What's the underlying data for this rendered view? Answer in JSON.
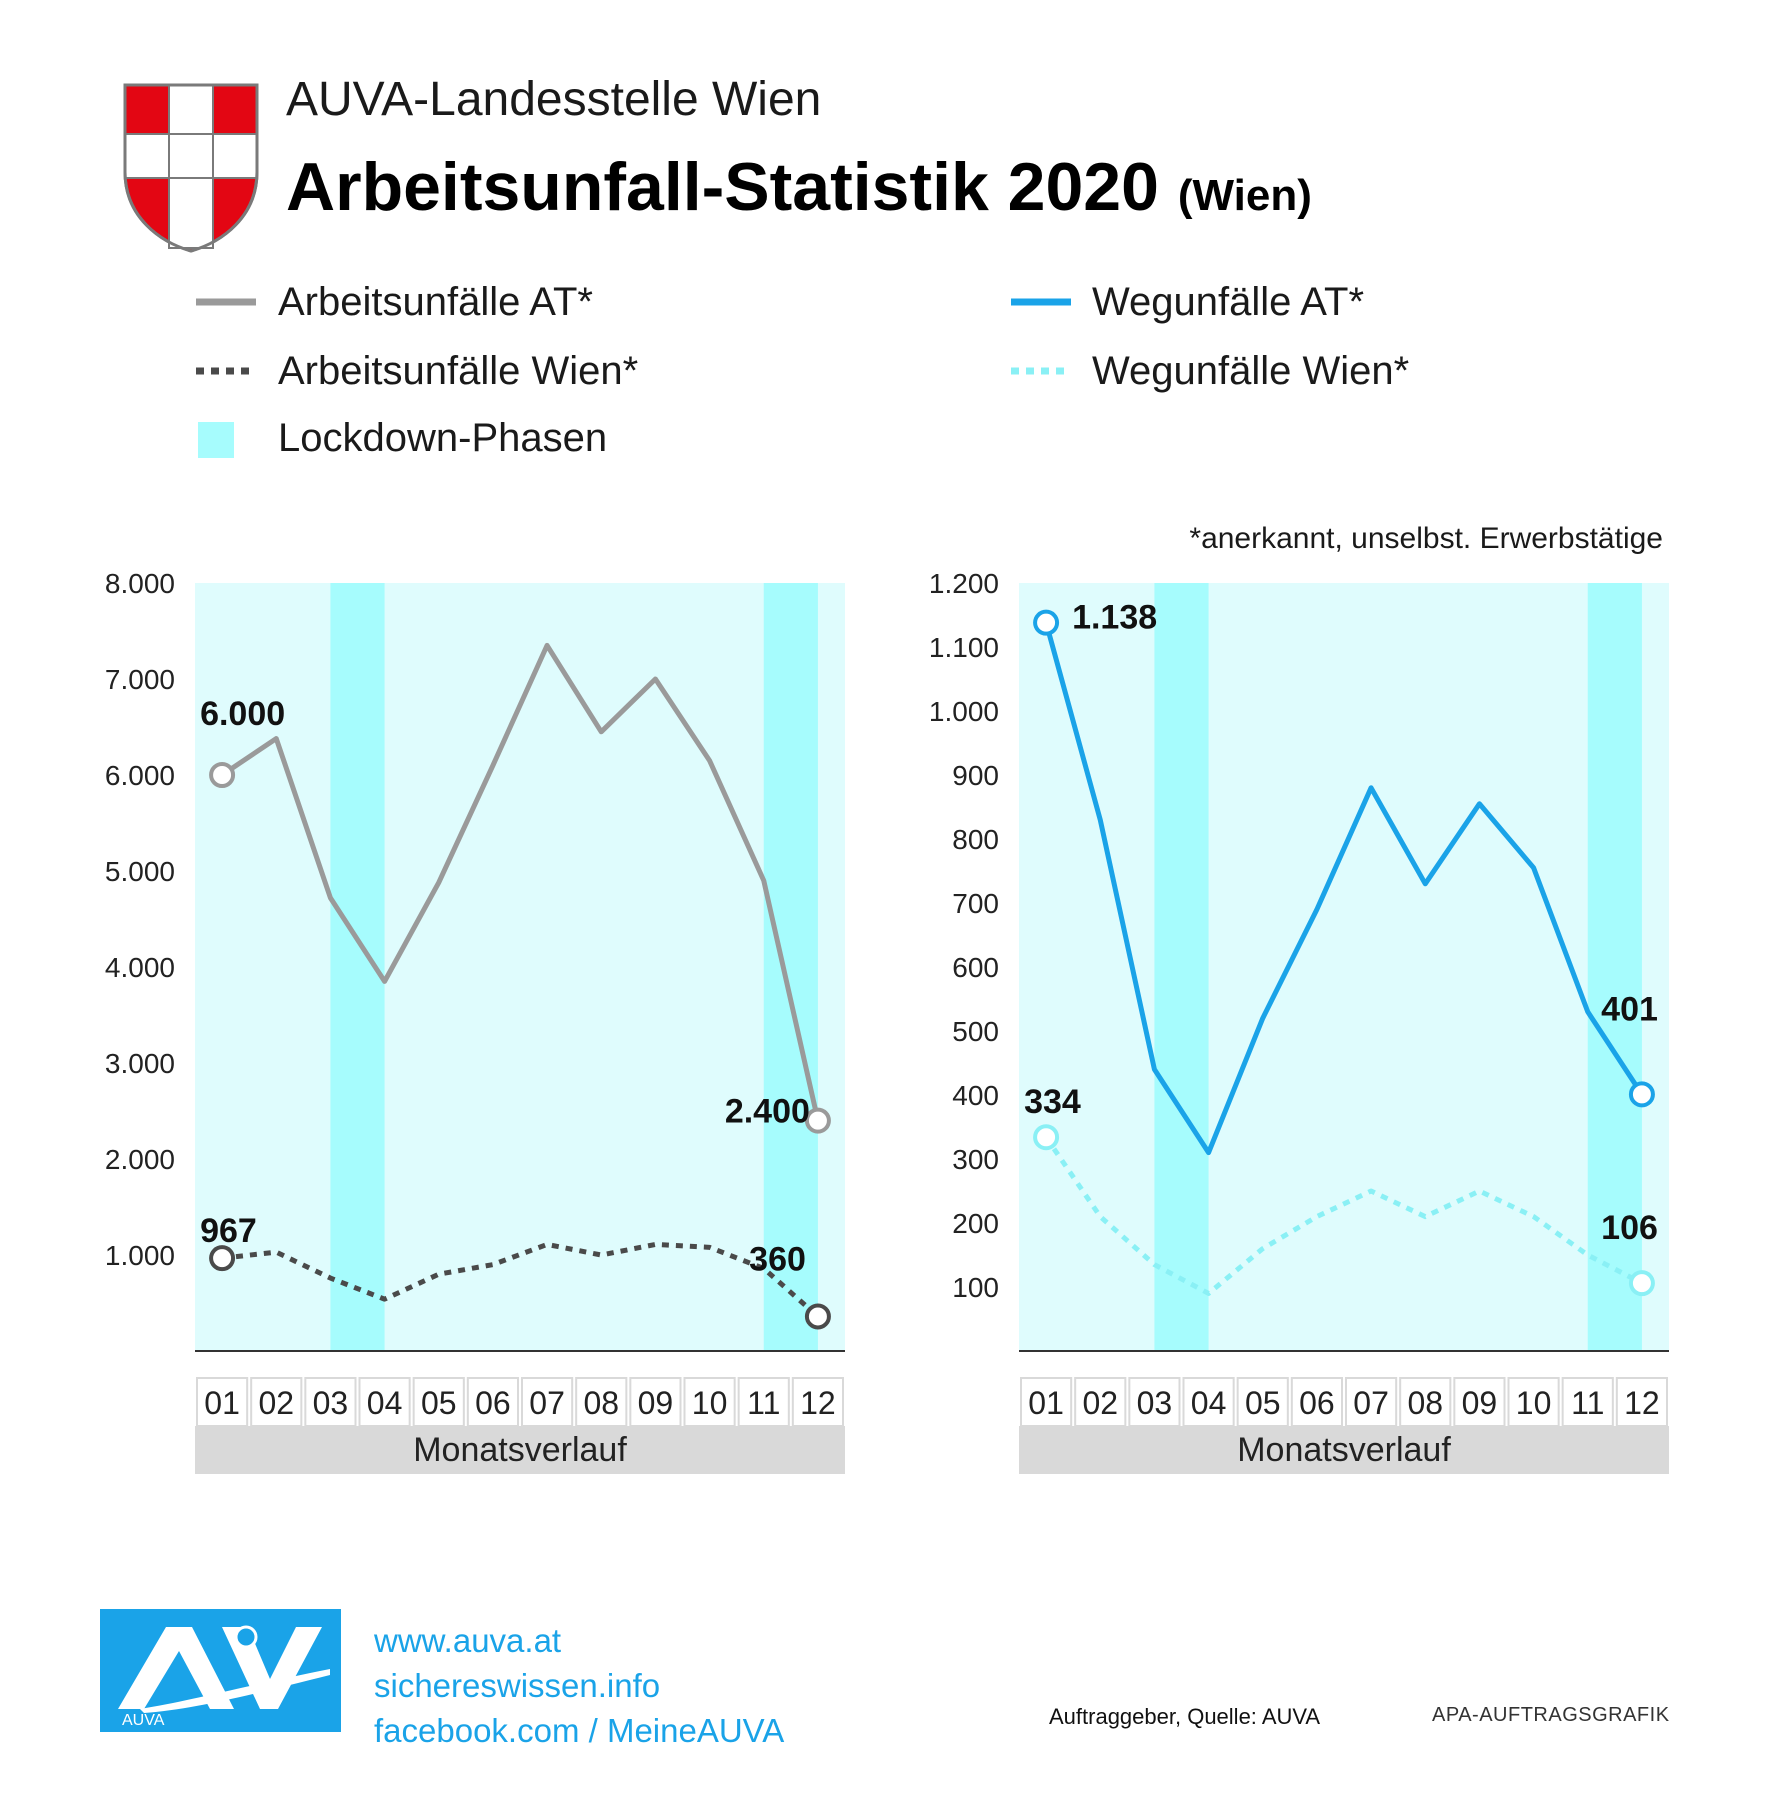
{
  "header": {
    "subtitle": "AUVA-Landesstelle Wien",
    "title": "Arbeitsunfall-Statistik 2020",
    "title_suffix": "(Wien)"
  },
  "legend": {
    "items": [
      {
        "label": "Arbeitsunfälle AT*",
        "style": "solid",
        "color": "#9a9a9a"
      },
      {
        "label": "Arbeitsunfälle Wien*",
        "style": "dotted",
        "color": "#4a4a4a"
      },
      {
        "label": "Lockdown-Phasen",
        "style": "box",
        "color": "#a6fcfd"
      },
      {
        "label": "Wegunfälle AT*",
        "style": "solid",
        "color": "#1aa3e8"
      },
      {
        "label": "Wegunfälle Wien*",
        "style": "dotted",
        "color": "#8af0f5"
      }
    ]
  },
  "note": "*anerkannt, unselbst. Erwerbstätige",
  "chart_data": [
    {
      "type": "line",
      "categories": [
        "01",
        "02",
        "03",
        "04",
        "05",
        "06",
        "07",
        "08",
        "09",
        "10",
        "11",
        "12"
      ],
      "xlabel": "Monatsverlauf",
      "ylim": [
        0,
        8000
      ],
      "yticks": [
        "8.000",
        "7.000",
        "6.000",
        "5.000",
        "4.000",
        "3.000",
        "2.000",
        "1.000"
      ],
      "ytick_values": [
        8000,
        7000,
        6000,
        5000,
        4000,
        3000,
        2000,
        1000
      ],
      "lockdown_months": [
        [
          "03",
          "04"
        ],
        [
          "11",
          "12"
        ]
      ],
      "series": [
        {
          "name": "Arbeitsunfälle AT*",
          "color": "#9a9a9a",
          "style": "solid",
          "values": [
            6000,
            6380,
            4720,
            3850,
            4880,
            6100,
            7350,
            6450,
            7000,
            6150,
            4900,
            2400
          ]
        },
        {
          "name": "Arbeitsunfälle Wien*",
          "color": "#4a4a4a",
          "style": "dotted",
          "values": [
            967,
            1030,
            760,
            540,
            800,
            900,
            1110,
            1000,
            1110,
            1080,
            860,
            360
          ]
        }
      ],
      "data_labels": [
        {
          "series": 0,
          "index": 0,
          "text": "6.000"
        },
        {
          "series": 0,
          "index": 11,
          "text": "2.400"
        },
        {
          "series": 1,
          "index": 0,
          "text": "967"
        },
        {
          "series": 1,
          "index": 11,
          "text": "360"
        }
      ]
    },
    {
      "type": "line",
      "categories": [
        "01",
        "02",
        "03",
        "04",
        "05",
        "06",
        "07",
        "08",
        "09",
        "10",
        "11",
        "12"
      ],
      "xlabel": "Monatsverlauf",
      "ylim": [
        0,
        1200
      ],
      "yticks": [
        "1.200",
        "1.100",
        "1.000",
        "900",
        "800",
        "700",
        "600",
        "500",
        "400",
        "300",
        "200",
        "100"
      ],
      "ytick_values": [
        1200,
        1100,
        1000,
        900,
        800,
        700,
        600,
        500,
        400,
        300,
        200,
        100
      ],
      "lockdown_months": [
        [
          "03",
          "04"
        ],
        [
          "11",
          "12"
        ]
      ],
      "series": [
        {
          "name": "Wegunfälle AT*",
          "color": "#1aa3e8",
          "style": "solid",
          "values": [
            1138,
            830,
            440,
            310,
            520,
            690,
            880,
            730,
            855,
            755,
            530,
            401
          ]
        },
        {
          "name": "Wegunfälle Wien*",
          "color": "#8af0f5",
          "style": "dotted",
          "values": [
            334,
            210,
            135,
            90,
            160,
            210,
            250,
            210,
            250,
            210,
            150,
            106
          ]
        }
      ],
      "data_labels": [
        {
          "series": 0,
          "index": 0,
          "text": "1.138"
        },
        {
          "series": 0,
          "index": 11,
          "text": "401"
        },
        {
          "series": 1,
          "index": 0,
          "text": "334"
        },
        {
          "series": 1,
          "index": 11,
          "text": "106"
        }
      ]
    }
  ],
  "footer": {
    "logo_text": "AUVA",
    "links": [
      "www.auva.at",
      "sichereswissen.info",
      "facebook.com / MeineAUVA"
    ],
    "credit": "Auftraggeber, Quelle: AUVA",
    "apa": "APA-AUFTRAGSGRAFIK"
  }
}
